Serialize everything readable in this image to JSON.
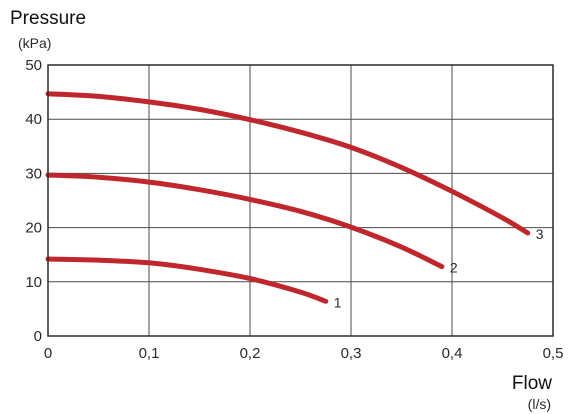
{
  "chart_data": {
    "type": "line",
    "ylabel": "Pressure",
    "ylabel_unit": "(kPa)",
    "xlabel": "Flow",
    "xlabel_unit": "(l/s)",
    "xlim": [
      0,
      0.5
    ],
    "ylim": [
      0,
      50
    ],
    "x_ticks": [
      0,
      0.1,
      0.2,
      0.3,
      0.4,
      0.5
    ],
    "x_tick_labels": [
      "0",
      "0,1",
      "0,2",
      "0,3",
      "0,4",
      "0,5"
    ],
    "y_ticks": [
      0,
      10,
      20,
      30,
      40,
      50
    ],
    "y_tick_labels": [
      "0",
      "10",
      "20",
      "30",
      "40",
      "50"
    ],
    "grid": true,
    "line_color": "#c0272d",
    "series": [
      {
        "name": "1",
        "x": [
          0,
          0.05,
          0.1,
          0.15,
          0.2,
          0.25,
          0.275
        ],
        "y": [
          14.2,
          14.0,
          13.5,
          12.3,
          10.6,
          8.1,
          6.4
        ]
      },
      {
        "name": "2",
        "x": [
          0,
          0.05,
          0.1,
          0.15,
          0.2,
          0.25,
          0.3,
          0.35,
          0.39
        ],
        "y": [
          29.7,
          29.3,
          28.4,
          27.0,
          25.2,
          23.0,
          20.1,
          16.4,
          12.8
        ]
      },
      {
        "name": "3",
        "x": [
          0,
          0.05,
          0.1,
          0.15,
          0.2,
          0.25,
          0.3,
          0.35,
          0.4,
          0.45,
          0.475
        ],
        "y": [
          44.7,
          44.2,
          43.2,
          41.8,
          39.9,
          37.6,
          34.8,
          31.1,
          26.7,
          21.8,
          19.0
        ]
      }
    ]
  }
}
